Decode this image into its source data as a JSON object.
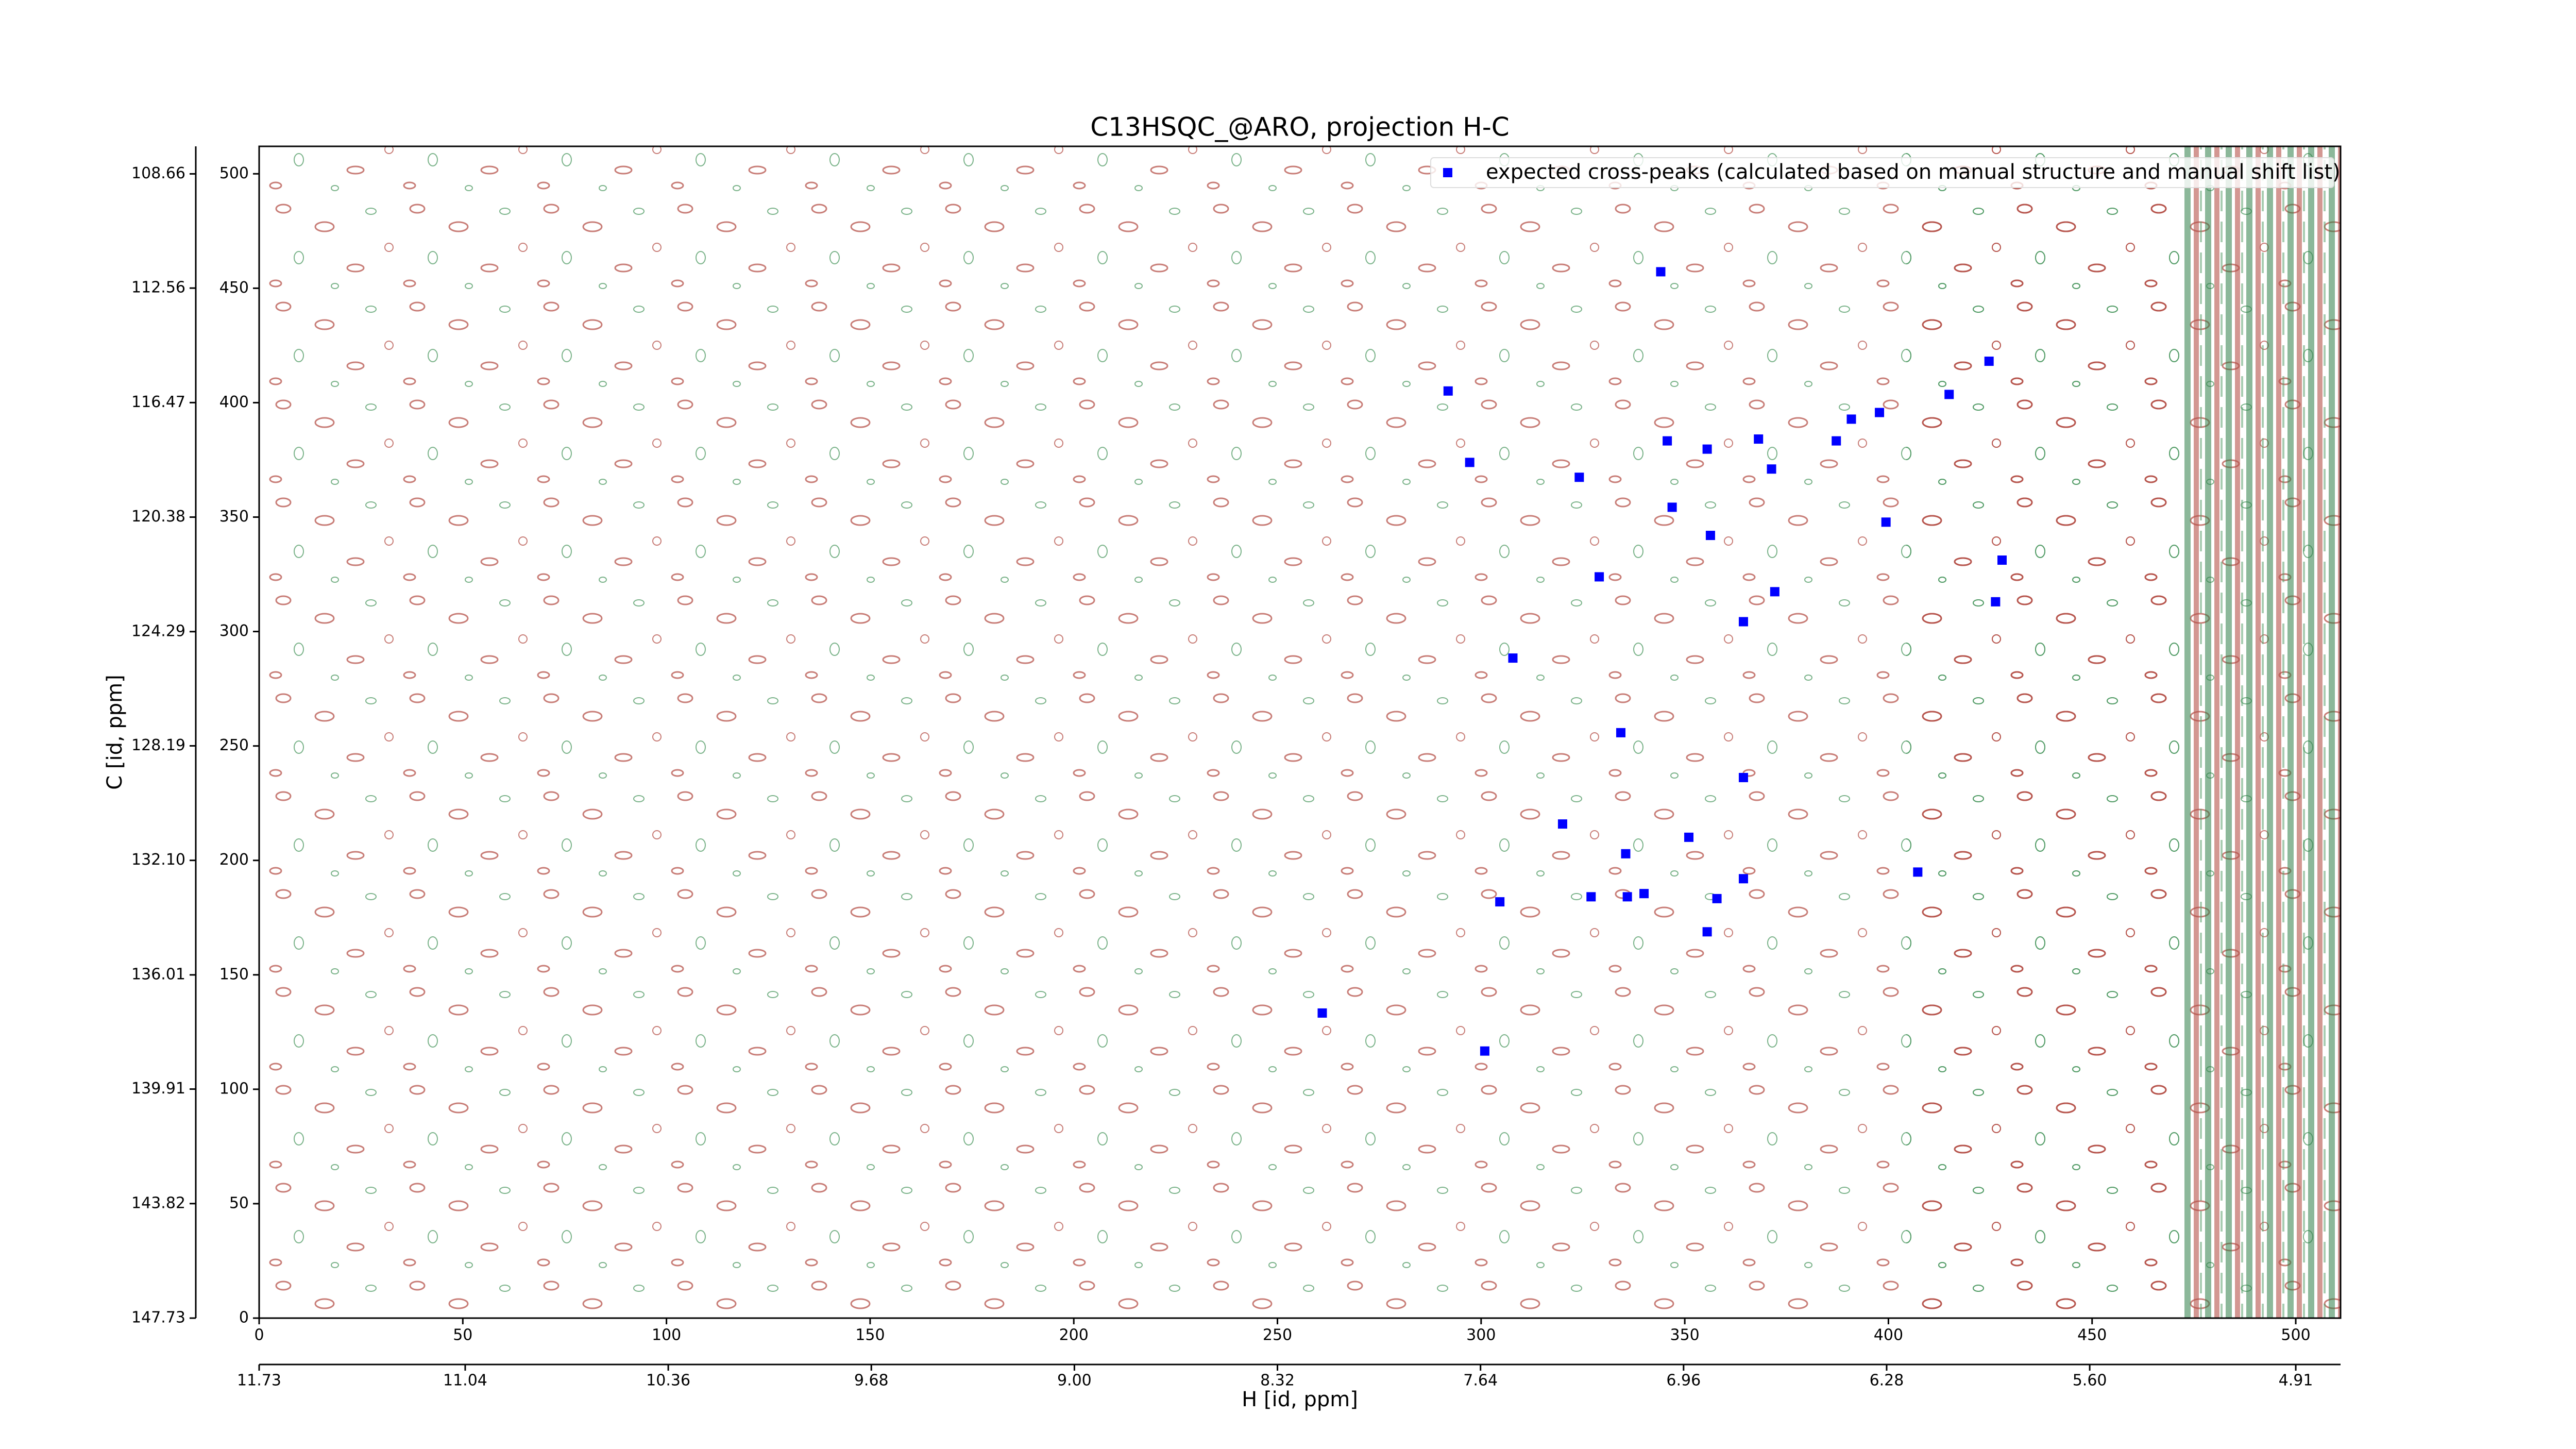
{
  "chart_data": {
    "type": "scatter",
    "title": "C13HSQC_@ARO, projection H-C",
    "x_label": "H [id, ppm]",
    "y_label": "C [id, ppm]",
    "xlim": [
      0,
      511
    ],
    "ylim": [
      0,
      512
    ],
    "xticks": [
      0,
      50,
      100,
      150,
      200,
      250,
      300,
      350,
      400,
      450,
      500
    ],
    "yticks": [
      0,
      50,
      100,
      150,
      200,
      250,
      300,
      350,
      400,
      450,
      500
    ],
    "x2lim": [
      11.73,
      4.76
    ],
    "x2ticks": [
      11.73,
      11.04,
      10.36,
      9.68,
      9.0,
      8.32,
      7.64,
      6.96,
      6.28,
      5.6,
      4.91
    ],
    "y2lim": [
      147.73,
      107.72
    ],
    "y2ticks": [
      108.66,
      112.56,
      116.47,
      120.38,
      124.29,
      128.19,
      132.1,
      136.01,
      139.91,
      143.82,
      147.73
    ],
    "legend": "upper right",
    "series": [
      {
        "name": "expected cross-peaks (calculated based on manual structure and manual shift list)",
        "color": "#0000ff",
        "marker": "s",
        "x": [
          344.1,
          424.7,
          291.9,
          414.9,
          397.8,
          390.9,
          345.7,
          368.1,
          387.2,
          355.5,
          297.2,
          371.3,
          324.1,
          346.9,
          399.4,
          356.3,
          427.9,
          329.0,
          372.1,
          426.3,
          364.4,
          307.8,
          334.3,
          364.4,
          320.0,
          335.5,
          351.0,
          407.2,
          364.4,
          304.6,
          327.0,
          335.9,
          340.0,
          357.9,
          355.5,
          261.0,
          300.9
        ],
        "values": [
          457.2,
          418.1,
          405.1,
          403.6,
          395.7,
          392.8,
          383.3,
          384.1,
          383.3,
          379.7,
          373.9,
          371.0,
          367.4,
          354.3,
          347.8,
          342.0,
          331.2,
          323.9,
          317.4,
          313.0,
          304.3,
          288.4,
          255.8,
          236.2,
          215.9,
          202.9,
          210.1,
          194.9,
          192.0,
          181.9,
          184.1,
          184.1,
          185.5,
          183.3,
          168.8,
          133.3,
          116.7
        ]
      }
    ]
  }
}
